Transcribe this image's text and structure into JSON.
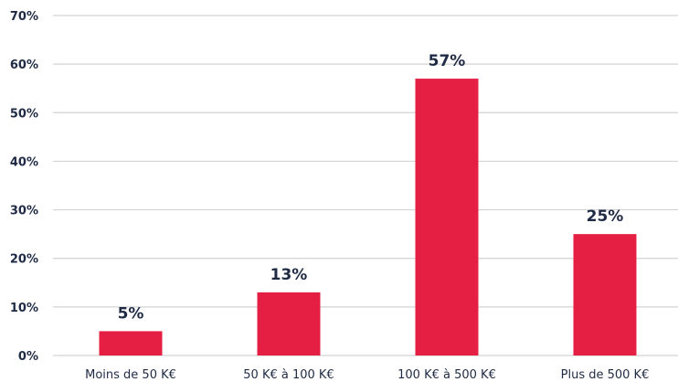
{
  "chart_data": {
    "type": "bar",
    "categories": [
      "Moins de 50 K€",
      "50 K€ à 100 K€",
      "100 K€ à 500 K€",
      "Plus de 500 K€"
    ],
    "values": [
      5,
      13,
      57,
      25
    ],
    "data_labels": [
      "5%",
      "13%",
      "57%",
      "25%"
    ],
    "y_ticks": [
      "0%",
      "10%",
      "20%",
      "30%",
      "40%",
      "50%",
      "60%",
      "70%"
    ],
    "ylim": [
      0,
      70
    ],
    "grid": true,
    "legend": "none",
    "colors": {
      "bar": "#e41f43",
      "text": "#1f2a44",
      "grid": "#d3d3d3"
    }
  }
}
